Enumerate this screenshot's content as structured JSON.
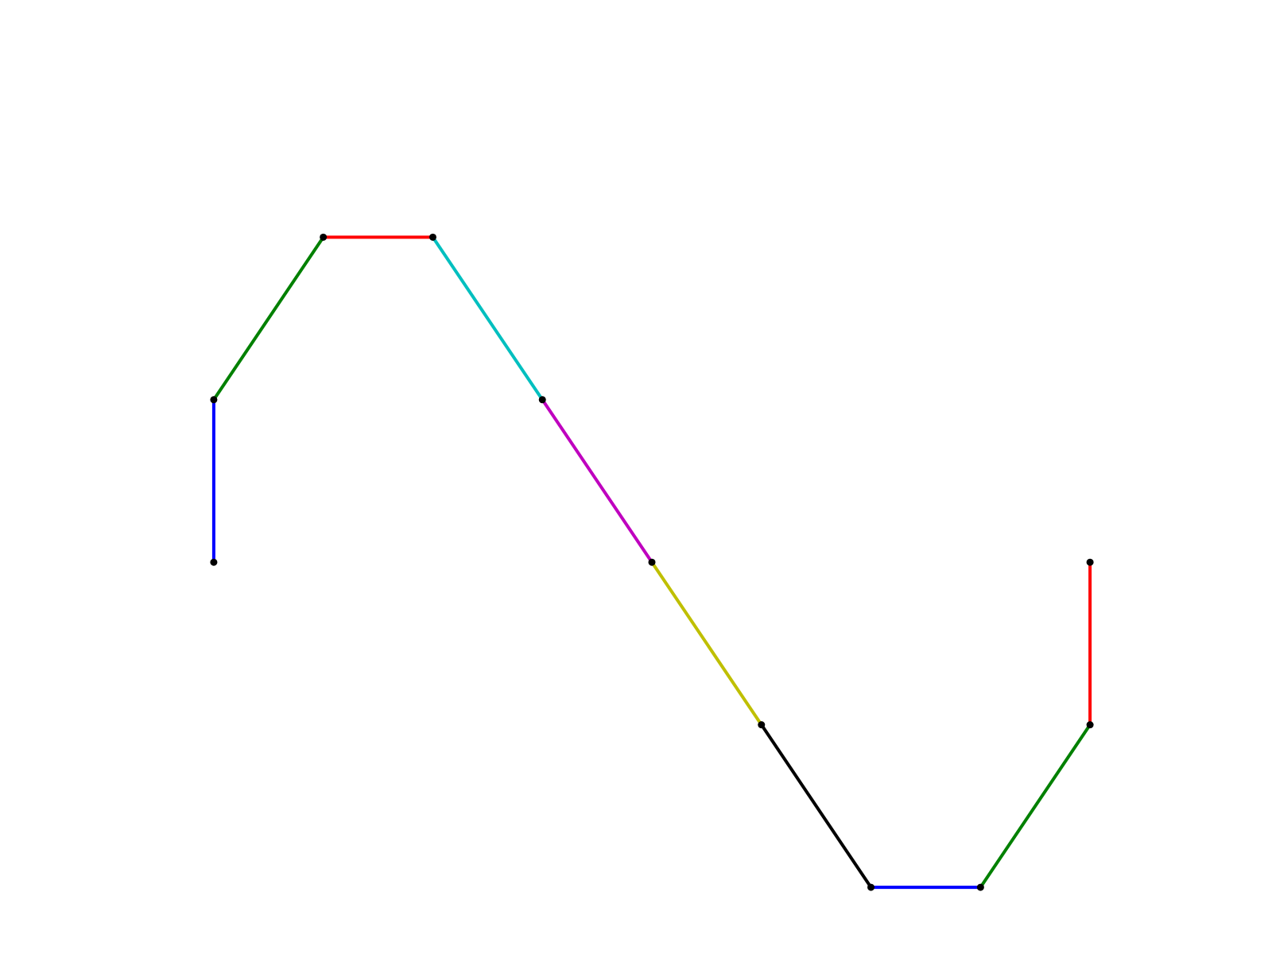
{
  "chart_data": {
    "type": "line",
    "title": "",
    "xlabel": "",
    "ylabel": "",
    "axes_visible": false,
    "grid": false,
    "legend": "none",
    "xlim": [
      -0.5,
      8.5
    ],
    "ylim": [
      -1.75,
      2.75
    ],
    "points": [
      {
        "x": 0,
        "y": 0
      },
      {
        "x": 0,
        "y": 1
      },
      {
        "x": 1,
        "y": 2
      },
      {
        "x": 2,
        "y": 2
      },
      {
        "x": 3,
        "y": 1
      },
      {
        "x": 4,
        "y": 0
      },
      {
        "x": 5,
        "y": -1
      },
      {
        "x": 6,
        "y": -2
      },
      {
        "x": 7,
        "y": -2
      },
      {
        "x": 8,
        "y": -1
      },
      {
        "x": 8,
        "y": 0
      }
    ],
    "segment_colors": [
      "#0000ff",
      "#008000",
      "#ff0000",
      "#00bfbf",
      "#bf00bf",
      "#bfbf00",
      "#000000",
      "#0000ff",
      "#008000",
      "#ff0000"
    ],
    "marker_color": "#000000"
  }
}
